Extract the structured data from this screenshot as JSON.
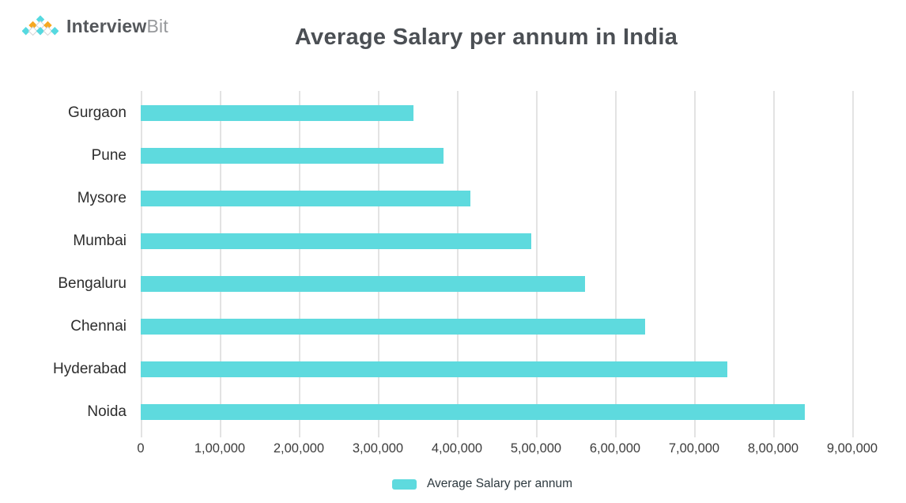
{
  "logo": {
    "brand_bold": "Interview",
    "brand_light": "Bit"
  },
  "header": {
    "title": "Average Salary per annum in India"
  },
  "legend": {
    "label": "Average Salary per annum"
  },
  "colors": {
    "bar": "#5edade",
    "gridline": "#e3e3e3",
    "title_text": "#4b4f54",
    "category_text": "#2d2d2d",
    "tick_text": "#3d3d3d",
    "logo_cyan": "#56d9e0",
    "logo_orange": "#f6a821"
  },
  "chart_data": {
    "type": "bar",
    "orientation": "horizontal",
    "title": "Average Salary per annum in India",
    "series_name": "Average Salary per annum",
    "categories": [
      "Gurgaon",
      "Pune",
      "Mysore",
      "Mumbai",
      "Bengaluru",
      "Chennai",
      "Hyderabad",
      "Noida"
    ],
    "values": [
      345000,
      383000,
      417000,
      494000,
      562000,
      638000,
      742000,
      840000
    ],
    "xlabel": "",
    "ylabel": "",
    "xlim": [
      0,
      930000
    ],
    "xtick_values": [
      0,
      100000,
      200000,
      300000,
      400000,
      500000,
      600000,
      700000,
      800000,
      900000
    ],
    "xtick_labels": [
      "0",
      "1,00,000",
      "2,00,000",
      "3,00,000",
      "4,00,000",
      "5,00,000",
      "6,00,000",
      "7,00,000",
      "8,00,000",
      "9,00,000"
    ],
    "grid": "vertical",
    "legend_position": "bottom",
    "bar_color": "#5edade"
  }
}
